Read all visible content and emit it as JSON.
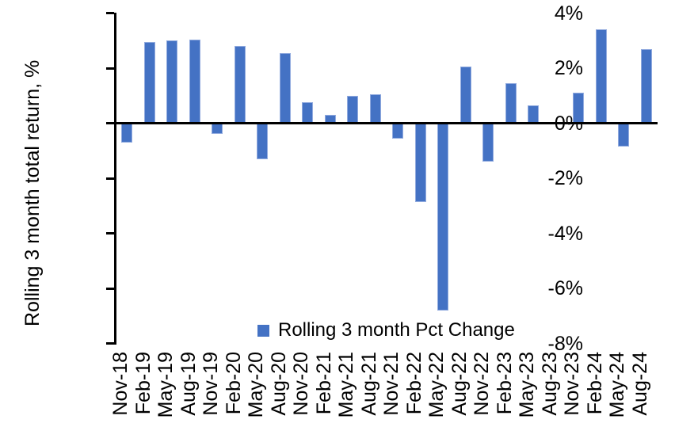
{
  "chart_data": {
    "type": "bar",
    "title": "",
    "xlabel": "",
    "ylabel": "Rolling 3 month total return, %",
    "ylim": [
      -8,
      4
    ],
    "grid": false,
    "legend": {
      "label": "Rolling 3 month Pct Change",
      "position": "bottom-center-inside"
    },
    "y_ticks": [
      {
        "value": 4,
        "label": "4%"
      },
      {
        "value": 2,
        "label": "2%"
      },
      {
        "value": 0,
        "label": "0%"
      },
      {
        "value": -2,
        "label": "-2%"
      },
      {
        "value": -4,
        "label": "-4%"
      },
      {
        "value": -6,
        "label": "-6%"
      },
      {
        "value": -8,
        "label": "-8%"
      }
    ],
    "categories": [
      "Nov-18",
      "Feb-19",
      "May-19",
      "Aug-19",
      "Nov-19",
      "Feb-20",
      "May-20",
      "Aug-20",
      "Nov-20",
      "Feb-21",
      "May-21",
      "Aug-21",
      "Nov-21",
      "Feb-22",
      "May-22",
      "Aug-22",
      "Nov-22",
      "Feb-23",
      "May-23",
      "Aug-23",
      "Nov-23",
      "Feb-24",
      "May-24",
      "Aug-24"
    ],
    "values": [
      -0.7,
      2.95,
      3.0,
      3.05,
      -0.4,
      2.8,
      -1.3,
      2.55,
      0.75,
      0.3,
      1.0,
      1.05,
      -0.55,
      -2.85,
      -6.8,
      2.05,
      -1.4,
      1.45,
      0.65,
      0.0,
      1.1,
      3.4,
      -0.85,
      2.7
    ],
    "colors": {
      "bar_fill": "#4472C4",
      "bar_edge": "#92ABDF",
      "axis": "#000000",
      "text": "#000000",
      "background": "#FFFFFF"
    }
  }
}
